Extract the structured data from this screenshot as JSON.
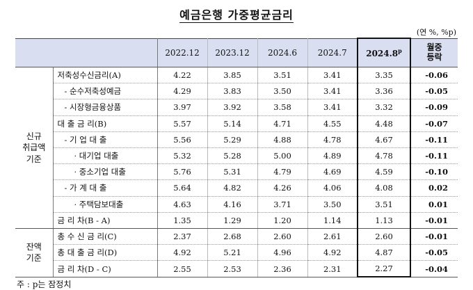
{
  "title": "예금은행 가중평균금리",
  "unit": "(연 %, %p)",
  "header": {
    "periods": [
      "2022.12",
      "2023.12",
      "2024.6",
      "2024.7"
    ],
    "current": "2024.8",
    "current_sup": "p",
    "change_line1": "월중",
    "change_line2": "등락"
  },
  "groups": {
    "new": [
      "신규",
      "취급액",
      "기준"
    ],
    "balance": [
      "잔액",
      "기준"
    ]
  },
  "rows": [
    {
      "label": "저축성수신금리(A)",
      "v": [
        "4.22",
        "3.85",
        "3.51",
        "3.41"
      ],
      "cur": "3.35",
      "chg": "-0.06"
    },
    {
      "label": "- 순수저축성예금",
      "v": [
        "4.29",
        "3.83",
        "3.50",
        "3.41"
      ],
      "cur": "3.36",
      "chg": "-0.05"
    },
    {
      "label": "- 시장형금융상품",
      "v": [
        "3.97",
        "3.92",
        "3.58",
        "3.41"
      ],
      "cur": "3.32",
      "chg": "-0.09"
    },
    {
      "label": "대 출 금 리(B)",
      "v": [
        "5.57",
        "5.14",
        "4.71",
        "4.55"
      ],
      "cur": "4.48",
      "chg": "-0.07"
    },
    {
      "label": "- 기 업 대 출",
      "v": [
        "5.56",
        "5.29",
        "4.88",
        "4.78"
      ],
      "cur": "4.67",
      "chg": "-0.11"
    },
    {
      "label": "· 대기업 대출",
      "v": [
        "5.32",
        "5.28",
        "5.00",
        "4.89"
      ],
      "cur": "4.78",
      "chg": "-0.11"
    },
    {
      "label": "· 중소기업 대출",
      "v": [
        "5.76",
        "5.31",
        "4.79",
        "4.69"
      ],
      "cur": "4.59",
      "chg": "-0.10"
    },
    {
      "label": "- 가 계 대 출",
      "v": [
        "5.64",
        "4.82",
        "4.26",
        "4.06"
      ],
      "cur": "4.08",
      "chg": "0.02"
    },
    {
      "label": "· 주택담보대출",
      "v": [
        "4.63",
        "4.16",
        "3.71",
        "3.50"
      ],
      "cur": "3.51",
      "chg": "0.01"
    },
    {
      "label": "금 리 차(B - A)",
      "v": [
        "1.35",
        "1.29",
        "1.20",
        "1.14"
      ],
      "cur": "1.13",
      "chg": "-0.01"
    },
    {
      "label": "총 수 신 금 리(C)",
      "v": [
        "2.37",
        "2.68",
        "2.60",
        "2.61"
      ],
      "cur": "2.60",
      "chg": "-0.01"
    },
    {
      "label": "총 대 출 금 리(D)",
      "v": [
        "4.92",
        "5.21",
        "4.96",
        "4.92"
      ],
      "cur": "4.87",
      "chg": "-0.05"
    },
    {
      "label": "금 리 차(D - C)",
      "v": [
        "2.55",
        "2.53",
        "2.36",
        "2.31"
      ],
      "cur": "2.27",
      "chg": "-0.04"
    }
  ],
  "note": "주 : p는 잠정치"
}
